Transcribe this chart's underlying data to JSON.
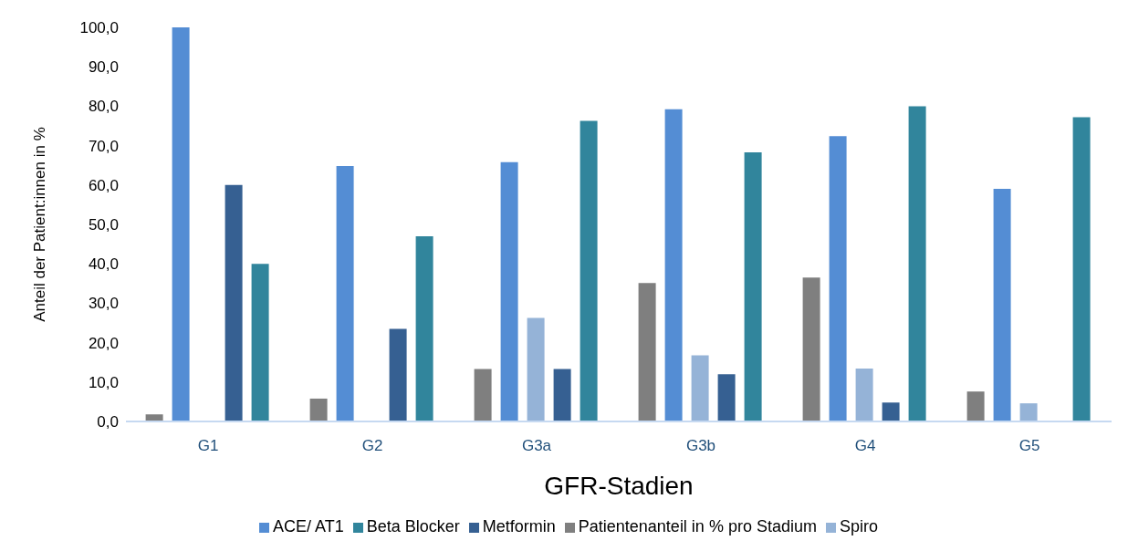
{
  "chart_data": {
    "type": "bar",
    "xlabel": "GFR-Stadien",
    "ylabel": "Anteil der Patient:innen in %",
    "categories": [
      "G1",
      "G2",
      "G3a",
      "G3b",
      "G4",
      "G5"
    ],
    "series": [
      {
        "name": "Patientenanteil in % pro Stadium",
        "color": "#7f7f7f",
        "values": [
          1.8,
          5.8,
          13.3,
          35.1,
          36.5,
          7.6
        ]
      },
      {
        "name": "ACE/ AT1",
        "color": "#548dd4",
        "values": [
          100,
          64.8,
          65.8,
          79.2,
          72.4,
          59.0
        ]
      },
      {
        "name": "Spiro",
        "color": "#95b3d7",
        "values": [
          0,
          0,
          26.3,
          16.8,
          13.4,
          4.6
        ]
      },
      {
        "name": "Metformin",
        "color": "#366092",
        "values": [
          60.0,
          23.5,
          13.3,
          12.0,
          4.8,
          0
        ]
      },
      {
        "name": "Beta Blocker",
        "color": "#31859c",
        "values": [
          40.0,
          47.0,
          76.3,
          68.3,
          80.0,
          77.2
        ]
      }
    ],
    "ylim": [
      0,
      100
    ],
    "yticks": [
      {
        "value": 0,
        "label": "0,0"
      },
      {
        "value": 10,
        "label": "10,0"
      },
      {
        "value": 20,
        "label": "20,0"
      },
      {
        "value": 30,
        "label": "30,0"
      },
      {
        "value": 40,
        "label": "40,0"
      },
      {
        "value": 50,
        "label": "50,0"
      },
      {
        "value": 60,
        "label": "60,0"
      },
      {
        "value": 70,
        "label": "70,0"
      },
      {
        "value": 80,
        "label": "80,0"
      },
      {
        "value": 90,
        "label": "90,0"
      },
      {
        "value": 100,
        "label": "100,0"
      }
    ],
    "grid": false,
    "legend": "bottom"
  }
}
